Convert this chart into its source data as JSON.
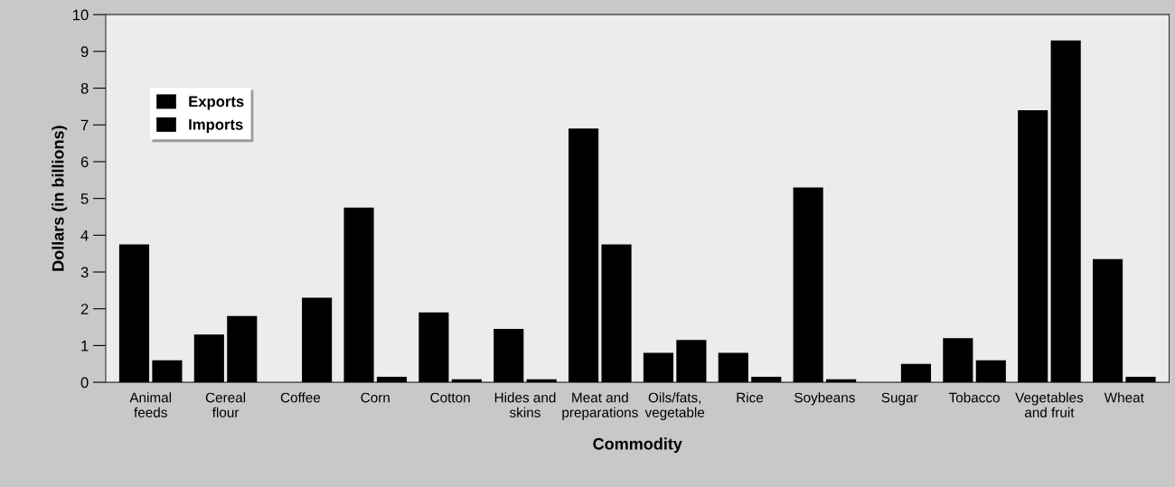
{
  "chart_data": {
    "type": "bar",
    "xlabel": "Commodity",
    "ylabel": "Dollars (in billions)",
    "categories": [
      "Animal\nfeeds",
      "Cereal\nflour",
      "Coffee",
      "Corn",
      "Cotton",
      "Hides and\nskins",
      "Meat and\npreparations",
      "Oils/fats,\nvegetable",
      "Rice",
      "Soybeans",
      "Sugar",
      "Tobacco",
      "Vegetables\nand fruit",
      "Wheat"
    ],
    "series": [
      {
        "name": "Exports",
        "color": "#000000",
        "values": [
          3.75,
          1.3,
          null,
          4.75,
          1.9,
          1.45,
          6.9,
          0.8,
          0.8,
          5.3,
          null,
          1.2,
          7.4,
          3.35
        ]
      },
      {
        "name": "Imports",
        "color": "#000000",
        "values": [
          0.6,
          1.8,
          2.3,
          0.15,
          0.08,
          0.08,
          3.75,
          1.15,
          0.15,
          0.08,
          0.5,
          0.6,
          9.3,
          0.15
        ]
      }
    ],
    "ylim": [
      0,
      10
    ],
    "yticks": [
      0,
      1,
      2,
      3,
      4,
      5,
      6,
      7,
      8,
      9,
      10
    ],
    "grid": false,
    "legend": "top left"
  }
}
